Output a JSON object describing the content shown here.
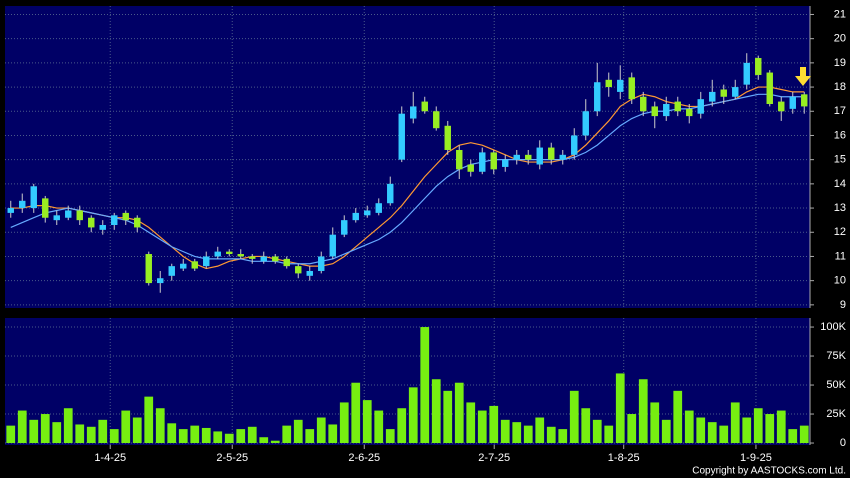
{
  "chart_data": [
    {
      "type": "candlestick",
      "up_color": "#33ccff",
      "down_color": "#99ee22",
      "xlim": [
        -0.5,
        69.5
      ],
      "ylim": [
        8.87,
        21.35
      ],
      "yticks": [
        9,
        10,
        11,
        12,
        13,
        14,
        15,
        16,
        17,
        18,
        19,
        20,
        21
      ],
      "grid": true,
      "open": [
        12.8,
        13.0,
        13.0,
        13.4,
        12.5,
        12.6,
        12.9,
        12.6,
        12.1,
        12.3,
        12.8,
        12.6,
        11.1,
        9.9,
        10.2,
        10.5,
        10.8,
        10.6,
        11.0,
        11.2,
        11.1,
        11.0,
        10.8,
        11.0,
        10.9,
        10.6,
        10.2,
        10.4,
        11.0,
        11.9,
        12.5,
        12.7,
        12.8,
        13.2,
        15.0,
        16.7,
        17.4,
        17.0,
        16.4,
        15.4,
        14.8,
        14.5,
        15.3,
        14.7,
        15.0,
        15.2,
        14.8,
        15.5,
        15.0,
        15.2,
        16.0,
        17.0,
        18.3,
        17.8,
        18.4,
        17.6,
        17.2,
        16.8,
        17.4,
        17.1,
        16.9,
        17.4,
        17.9,
        17.6,
        18.1,
        19.2,
        18.6,
        17.4,
        17.1,
        17.7
      ],
      "high": [
        13.3,
        13.6,
        14.0,
        13.5,
        12.9,
        13.1,
        13.1,
        12.7,
        12.5,
        12.8,
        12.9,
        12.7,
        11.2,
        10.4,
        10.7,
        10.9,
        10.9,
        11.2,
        11.4,
        11.3,
        11.3,
        11.1,
        11.2,
        11.1,
        11.0,
        10.7,
        10.6,
        11.2,
        12.2,
        12.7,
        13.0,
        13.1,
        13.4,
        14.3,
        17.2,
        17.8,
        17.6,
        17.2,
        16.6,
        15.6,
        15.0,
        15.5,
        15.4,
        15.2,
        15.4,
        15.4,
        15.8,
        15.7,
        15.4,
        16.3,
        17.5,
        19.0,
        18.6,
        18.9,
        18.6,
        17.8,
        17.4,
        17.6,
        17.6,
        17.3,
        17.8,
        18.3,
        18.1,
        18.3,
        19.4,
        19.3,
        18.7,
        17.6,
        17.8,
        17.8
      ],
      "low": [
        12.6,
        12.8,
        12.8,
        12.4,
        12.3,
        12.5,
        12.3,
        12.0,
        11.9,
        12.1,
        12.3,
        12.0,
        9.8,
        9.5,
        10.0,
        10.4,
        10.4,
        10.5,
        10.9,
        11.0,
        10.9,
        10.7,
        10.7,
        10.7,
        10.5,
        10.1,
        10.0,
        10.3,
        10.9,
        11.8,
        12.4,
        12.6,
        12.7,
        13.1,
        14.9,
        16.5,
        16.9,
        16.2,
        15.2,
        14.2,
        14.3,
        14.4,
        14.4,
        14.5,
        14.8,
        14.8,
        14.6,
        14.8,
        14.8,
        15.0,
        15.8,
        16.8,
        17.6,
        17.5,
        17.3,
        16.8,
        16.3,
        16.6,
        16.8,
        16.5,
        16.7,
        17.2,
        17.3,
        17.5,
        17.9,
        18.3,
        17.2,
        16.6,
        16.9,
        16.9
      ],
      "close": [
        13.0,
        13.3,
        13.9,
        12.6,
        12.7,
        12.9,
        12.5,
        12.2,
        12.3,
        12.7,
        12.5,
        12.2,
        9.9,
        10.1,
        10.6,
        10.7,
        10.5,
        11.0,
        11.2,
        11.1,
        11.0,
        10.9,
        11.0,
        10.8,
        10.6,
        10.3,
        10.4,
        11.0,
        11.9,
        12.5,
        12.8,
        12.9,
        13.2,
        14.0,
        16.9,
        17.2,
        17.0,
        16.3,
        15.4,
        14.6,
        14.5,
        15.3,
        14.6,
        15.0,
        15.2,
        15.0,
        15.5,
        15.0,
        15.2,
        16.0,
        17.0,
        18.2,
        18.0,
        18.3,
        17.5,
        17.0,
        16.8,
        17.3,
        17.0,
        16.8,
        17.5,
        17.8,
        17.6,
        18.0,
        19.0,
        18.5,
        17.3,
        17.0,
        17.6,
        17.2
      ],
      "series": [
        {
          "color": "#ff9933",
          "values": [
            13.0,
            13.0,
            13.1,
            13.1,
            13.0,
            13.0,
            12.9,
            12.8,
            12.7,
            12.6,
            12.6,
            12.5,
            12.2,
            11.8,
            11.4,
            11.0,
            10.7,
            10.5,
            10.6,
            10.8,
            10.9,
            11.0,
            11.0,
            10.9,
            10.8,
            10.7,
            10.6,
            10.6,
            10.7,
            11.0,
            11.4,
            11.8,
            12.2,
            12.6,
            13.1,
            13.7,
            14.3,
            14.8,
            15.3,
            15.6,
            15.7,
            15.6,
            15.4,
            15.2,
            15.0,
            14.9,
            14.9,
            14.9,
            15.0,
            15.2,
            15.6,
            16.1,
            16.6,
            17.2,
            17.5,
            17.7,
            17.6,
            17.4,
            17.3,
            17.2,
            17.2,
            17.3,
            17.4,
            17.5,
            17.8,
            18.0,
            18.0,
            17.9,
            17.8,
            17.8
          ]
        },
        {
          "color": "#66aaff",
          "values": [
            12.2,
            12.4,
            12.6,
            12.8,
            12.9,
            13.0,
            12.9,
            12.8,
            12.7,
            12.6,
            12.5,
            12.3,
            12.0,
            11.7,
            11.4,
            11.2,
            11.0,
            10.9,
            10.9,
            10.9,
            10.9,
            10.8,
            10.8,
            10.8,
            10.7,
            10.7,
            10.7,
            10.8,
            10.9,
            11.1,
            11.3,
            11.5,
            11.7,
            12.0,
            12.4,
            12.9,
            13.4,
            13.9,
            14.3,
            14.6,
            14.8,
            14.9,
            15.0,
            15.0,
            15.0,
            15.0,
            15.0,
            15.0,
            15.0,
            15.1,
            15.3,
            15.6,
            16.0,
            16.4,
            16.7,
            16.9,
            17.0,
            17.0,
            17.1,
            17.1,
            17.2,
            17.3,
            17.4,
            17.5,
            17.6,
            17.7,
            17.7,
            17.6,
            17.6,
            17.6
          ]
        }
      ]
    },
    {
      "type": "bar",
      "color": "#77ee11",
      "xlim": [
        -0.5,
        69.5
      ],
      "xticks": [
        {
          "value": 8.65,
          "label": "1-4-25"
        },
        {
          "value": 19.26,
          "label": "2-5-25"
        },
        {
          "value": 30.74,
          "label": "2-6-25"
        },
        {
          "value": 42.04,
          "label": "2-7-25"
        },
        {
          "value": 53.3,
          "label": "1-8-25"
        },
        {
          "value": 64.8,
          "label": "1-9-25"
        }
      ],
      "ylim": [
        -1700,
        107800
      ],
      "yticks": [
        0,
        {
          "value": 25000,
          "label": "25K"
        },
        {
          "value": 50000,
          "label": "50K"
        },
        {
          "value": 75000,
          "label": "75K"
        },
        {
          "value": 100000,
          "label": "100K"
        }
      ],
      "grid": true,
      "values": [
        15000,
        28000,
        20000,
        25000,
        18000,
        30000,
        16000,
        14000,
        20000,
        12000,
        28000,
        22000,
        40000,
        30000,
        17000,
        12000,
        15000,
        13000,
        10000,
        8000,
        12000,
        14000,
        5000,
        2000,
        15000,
        20000,
        12000,
        22000,
        16000,
        35000,
        52000,
        37000,
        28000,
        12000,
        30000,
        48000,
        100000,
        55000,
        45000,
        52000,
        35000,
        28000,
        32000,
        20000,
        18000,
        15000,
        22000,
        14000,
        12000,
        45000,
        30000,
        20000,
        15000,
        60000,
        25000,
        55000,
        35000,
        20000,
        45000,
        28000,
        22000,
        18000,
        15000,
        35000,
        22000,
        30000,
        25000,
        28000,
        12000,
        15000
      ]
    }
  ],
  "footer": "Copyright by AASTOCKS.com Ltd."
}
